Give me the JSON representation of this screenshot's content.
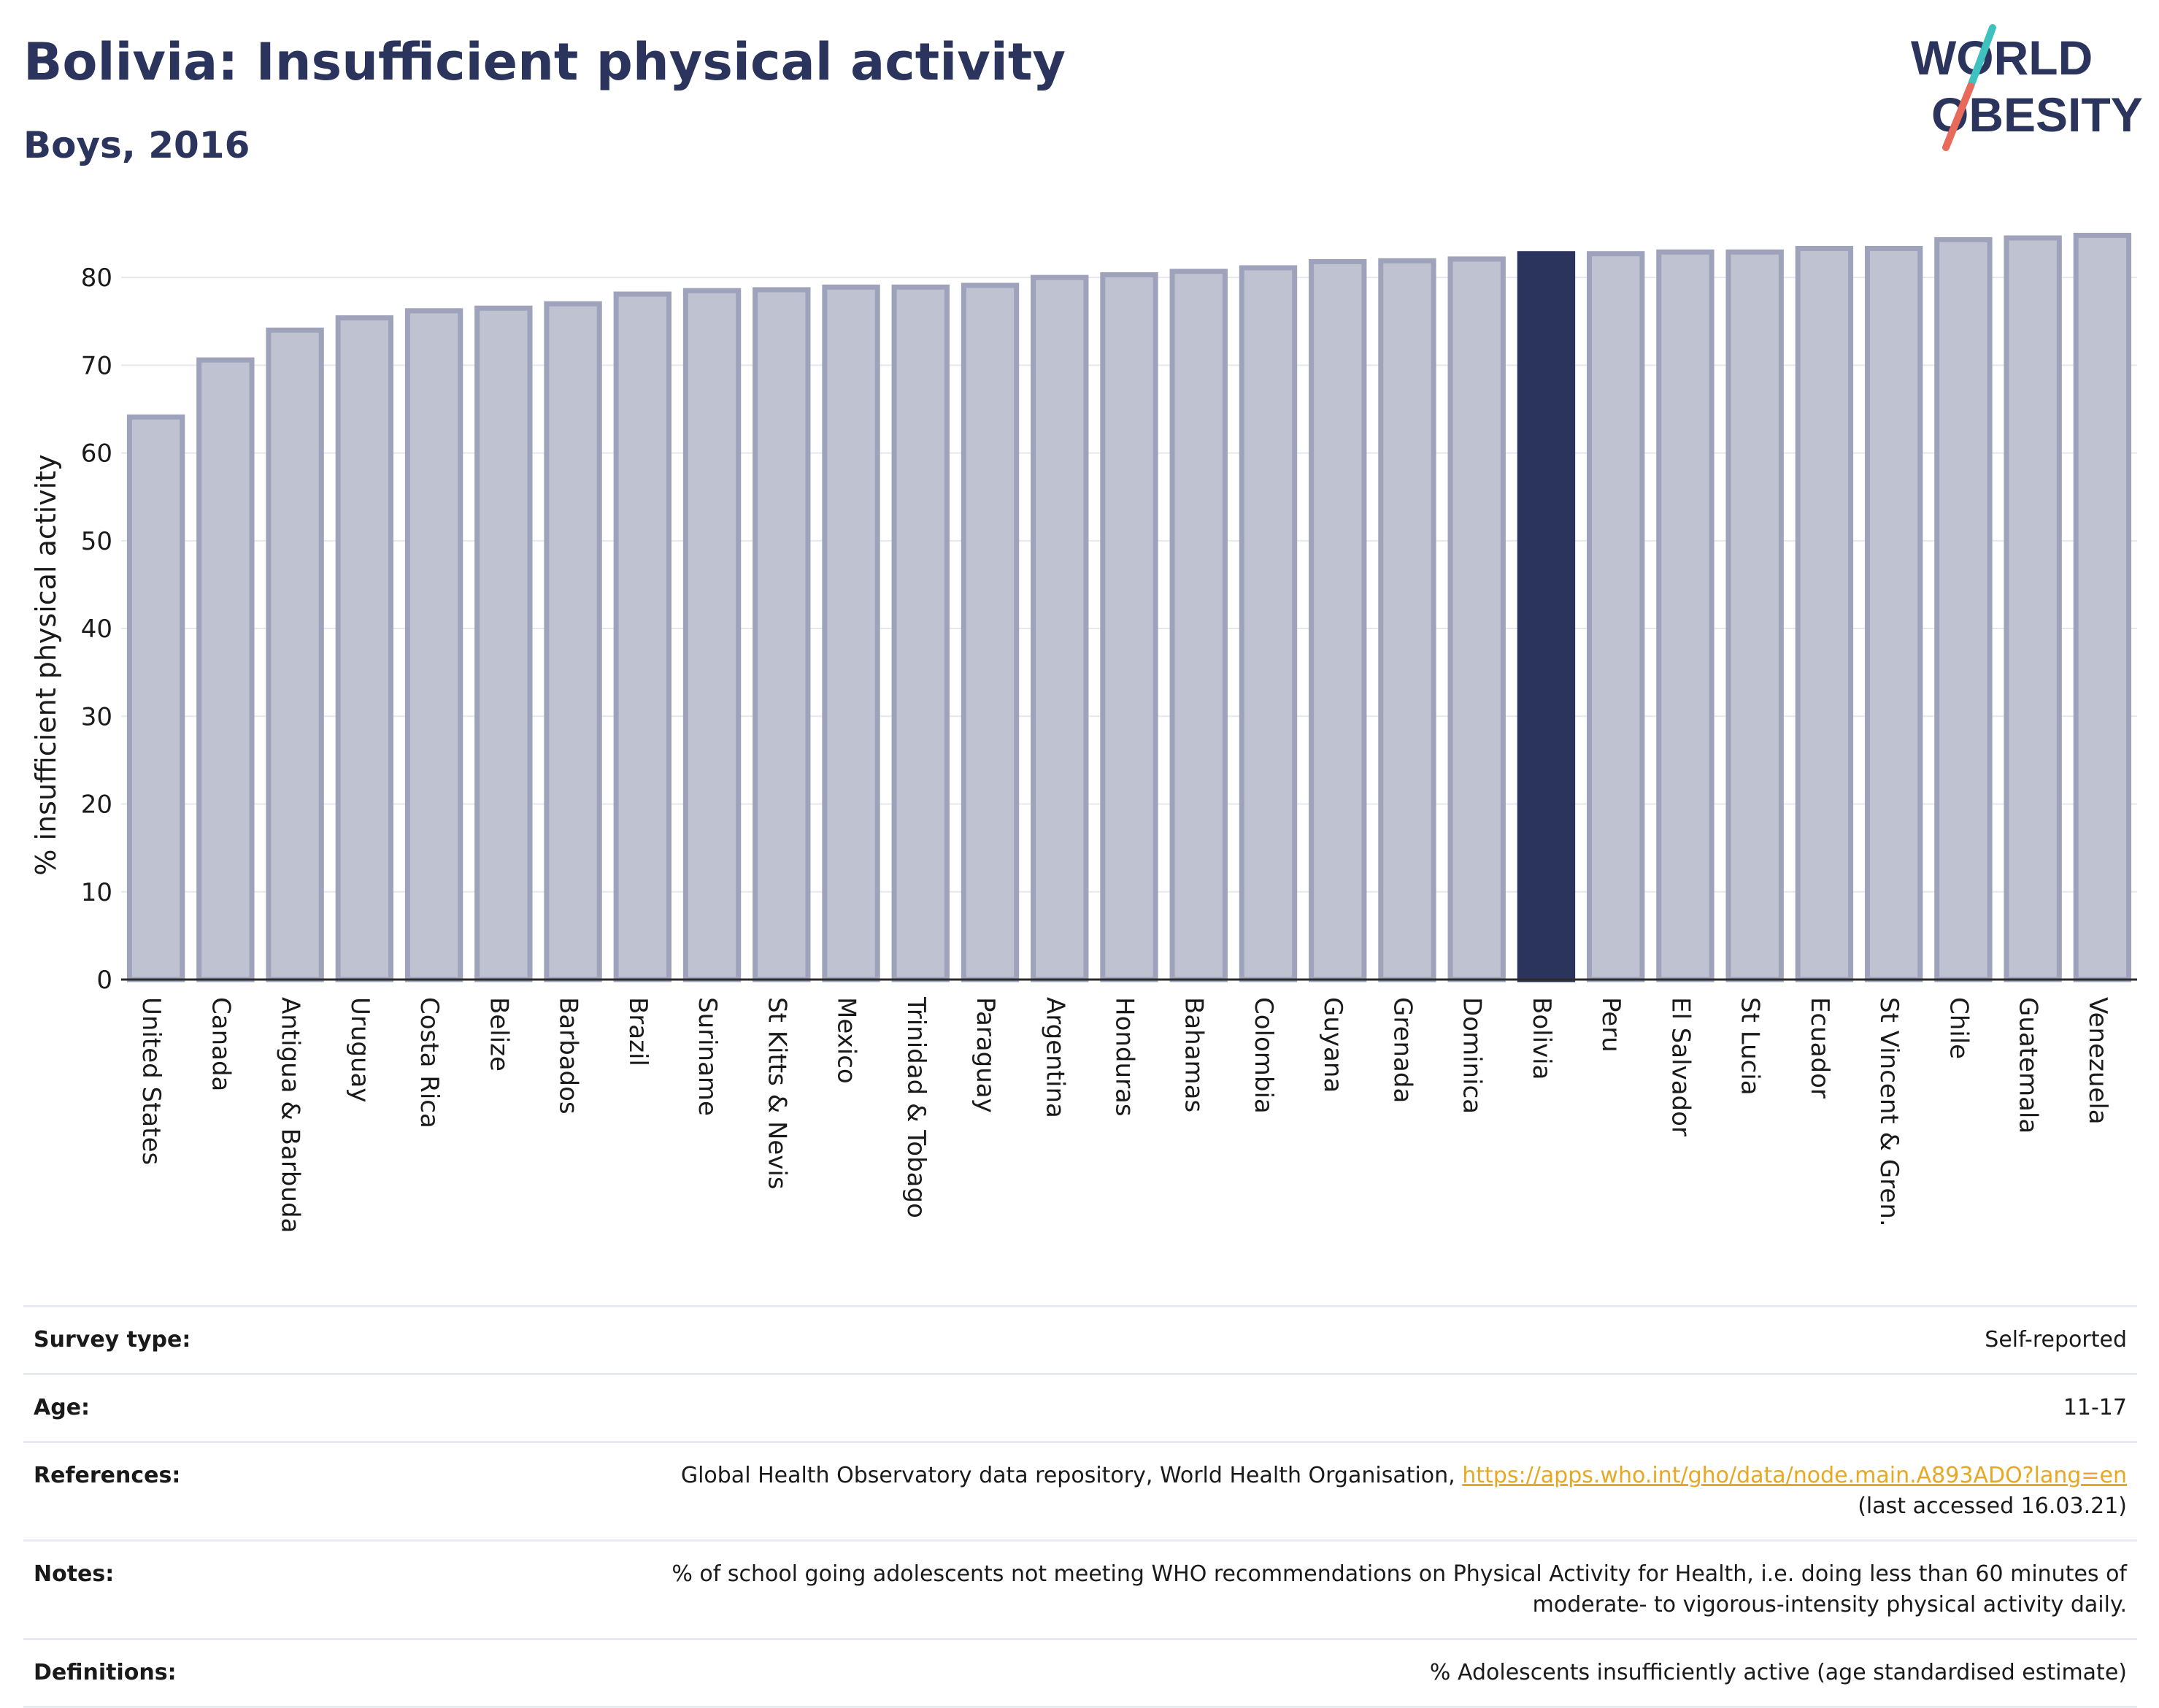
{
  "header": {
    "title": "Bolivia: Insufficient physical activity",
    "subtitle": "Boys, 2016"
  },
  "logo": {
    "line1": "WORLD",
    "line2": "OBESITY",
    "text_color": "#2b345d",
    "slash_colors": [
      "#3fc1c0",
      "#e86a5a"
    ]
  },
  "chart_data": {
    "type": "bar",
    "ylabel": "% insufficient physical activity",
    "ylim": [
      0,
      85
    ],
    "yticks": [
      0,
      10,
      20,
      30,
      40,
      50,
      60,
      70,
      80
    ],
    "grid": true,
    "highlight": "Bolivia",
    "colors": {
      "bar_fill": "#bfc2d0",
      "bar_stroke": "#9ea3bb",
      "highlight_fill": "#2b345d"
    },
    "categories": [
      "United States",
      "Canada",
      "Antigua & Barbuda",
      "Uruguay",
      "Costa Rica",
      "Belize",
      "Barbados",
      "Brazil",
      "Suriname",
      "St Kitts & Nevis",
      "Mexico",
      "Trinidad & Tobago",
      "Paraguay",
      "Argentina",
      "Honduras",
      "Bahamas",
      "Colombia",
      "Guyana",
      "Grenada",
      "Dominica",
      "Bolivia",
      "Peru",
      "El Salvador",
      "St Lucia",
      "Ecuador",
      "St Vincent & Gren.",
      "Chile",
      "Guatemala",
      "Venezuela"
    ],
    "values": [
      64.1,
      70.6,
      74.0,
      75.4,
      76.2,
      76.5,
      77.0,
      78.1,
      78.5,
      78.6,
      78.9,
      78.9,
      79.1,
      80.0,
      80.3,
      80.7,
      81.1,
      81.8,
      81.9,
      82.1,
      82.7,
      82.7,
      82.9,
      82.9,
      83.3,
      83.3,
      84.3,
      84.5,
      84.8
    ]
  },
  "info": {
    "survey_label": "Survey type:",
    "survey_value": "Self-reported",
    "age_label": "Age:",
    "age_value": "11-17",
    "references_label": "References:",
    "references_text": "Global Health Observatory data repository, World Health Organisation,",
    "references_link": "https://apps.who.int/gho/data/node.main.A893ADO?lang=en",
    "references_accessed": "(last accessed 16.03.21)",
    "notes_label": "Notes:",
    "notes_line1": "% of school going adolescents not meeting WHO recommendations on Physical Activity for Health, i.e. doing less than 60 minutes of",
    "notes_line2": "moderate- to vigorous-intensity physical activity daily.",
    "definitions_label": "Definitions:",
    "definitions_value": "% Adolescents insufficiently active (age standardised estimate)"
  }
}
